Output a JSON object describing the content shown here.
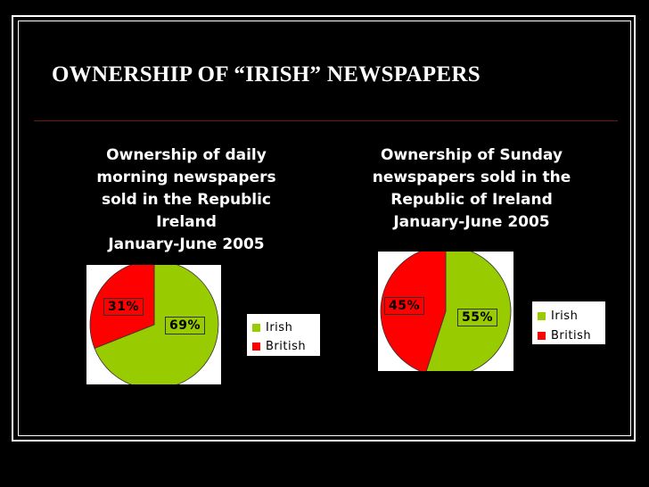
{
  "slide": {
    "title": "OWNERSHIP OF “IRISH” NEWSPAPERS"
  },
  "colors": {
    "irish": "#99cc00",
    "british": "#ff0000",
    "background": "#000000"
  },
  "chart_data": [
    {
      "type": "pie",
      "title": "Ownership of daily morning newspapers sold in the Republic Ireland January-June 2005",
      "title_lines": [
        "Ownership of daily",
        "morning newspapers",
        "sold in the Republic",
        "Ireland",
        "January-June 2005"
      ],
      "categories": [
        "Irish",
        "British"
      ],
      "values": [
        69,
        31
      ],
      "data_labels": [
        "69%",
        "31%"
      ],
      "legend_position": "right"
    },
    {
      "type": "pie",
      "title": "Ownership of Sunday newspapers sold in the Republic of Ireland January-June 2005",
      "title_lines": [
        "Ownership of Sunday",
        "newspapers sold in the",
        "Republic of Ireland",
        "January-June 2005"
      ],
      "categories": [
        "Irish",
        "British"
      ],
      "values": [
        55,
        45
      ],
      "data_labels": [
        "55%",
        "45%"
      ],
      "legend_position": "right"
    }
  ]
}
